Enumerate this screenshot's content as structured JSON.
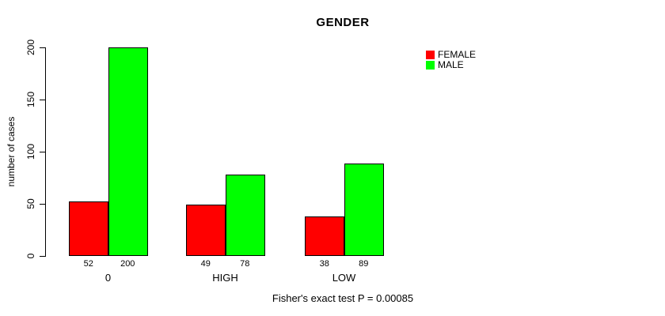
{
  "chart_data": {
    "type": "bar",
    "title": "GENDER",
    "ylabel": "number of cases",
    "xlabel": "",
    "categories": [
      "0",
      "HIGH",
      "LOW"
    ],
    "series": [
      {
        "name": "FEMALE",
        "color": "#FF0000",
        "values": [
          52,
          49,
          38
        ]
      },
      {
        "name": "MALE",
        "color": "#00FF00",
        "values": [
          200,
          78,
          89
        ]
      }
    ],
    "bar_value_labels": [
      [
        52,
        49,
        38
      ],
      [
        200,
        78,
        89
      ]
    ],
    "yticks": [
      0,
      50,
      100,
      150,
      200
    ],
    "ylim": [
      0,
      200
    ],
    "grid": false,
    "legend_position": "top-right",
    "annotation": "Fisher's exact test P = 0.00085"
  }
}
